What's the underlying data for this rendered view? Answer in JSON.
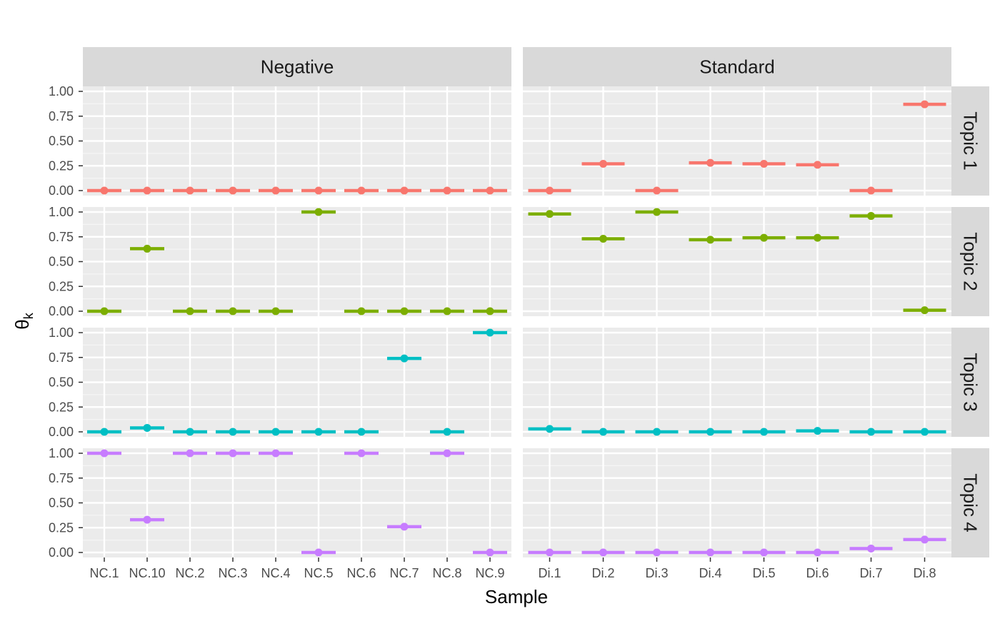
{
  "chart_data": {
    "type": "scatter",
    "facet_cols": [
      "Negative",
      "Standard"
    ],
    "facet_rows": [
      "Topic 1",
      "Topic 2",
      "Topic 3",
      "Topic 4"
    ],
    "xlabel": "Sample",
    "ylabel": "θ",
    "ylabel_sub": "k",
    "ylim": [
      0,
      1
    ],
    "yticks": [
      "0.00",
      "0.25",
      "0.50",
      "0.75",
      "1.00"
    ],
    "categories": {
      "Negative": [
        "NC.1",
        "NC.10",
        "NC.2",
        "NC.3",
        "NC.4",
        "NC.5",
        "NC.6",
        "NC.7",
        "NC.8",
        "NC.9"
      ],
      "Standard": [
        "Di.1",
        "Di.2",
        "Di.3",
        "Di.4",
        "Di.5",
        "Di.6",
        "Di.7",
        "Di.8"
      ]
    },
    "colors": [
      "#F8766D",
      "#7CAE00",
      "#00BFC4",
      "#C77CFF"
    ],
    "grid": true,
    "legend": "none",
    "series": [
      {
        "Negative": [
          0.0,
          0.0,
          0.0,
          0.0,
          0.0,
          0.0,
          0.0,
          0.0,
          0.0,
          0.0
        ],
        "Standard": [
          0.0,
          0.27,
          0.0,
          0.28,
          0.27,
          0.26,
          0.0,
          0.87
        ]
      },
      {
        "Negative": [
          0.0,
          0.63,
          0.0,
          0.0,
          0.0,
          1.0,
          0.0,
          0.0,
          0.0,
          0.0
        ],
        "Standard": [
          0.98,
          0.73,
          1.0,
          0.72,
          0.74,
          0.74,
          0.96,
          0.01
        ]
      },
      {
        "Negative": [
          0.0,
          0.04,
          0.0,
          0.0,
          0.0,
          0.0,
          0.0,
          0.74,
          0.0,
          1.0
        ],
        "Standard": [
          0.03,
          0.0,
          0.0,
          0.0,
          0.0,
          0.01,
          0.0,
          0.0
        ]
      },
      {
        "Negative": [
          1.0,
          0.33,
          1.0,
          1.0,
          1.0,
          0.0,
          1.0,
          0.26,
          1.0,
          0.0
        ],
        "Standard": [
          0.0,
          0.0,
          0.0,
          0.0,
          0.0,
          0.0,
          0.04,
          0.13
        ]
      }
    ]
  }
}
